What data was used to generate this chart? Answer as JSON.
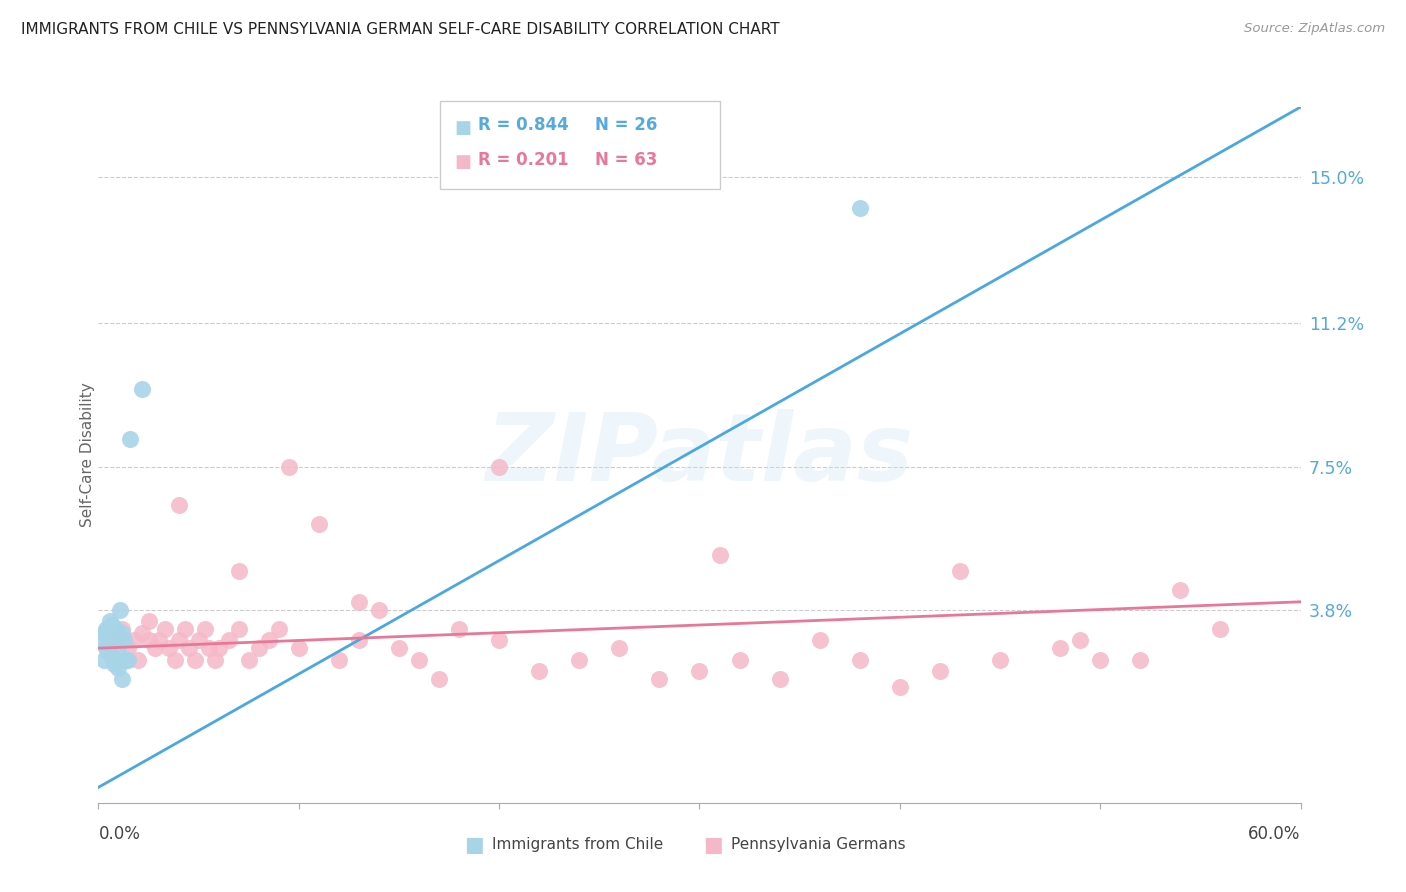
{
  "title": "IMMIGRANTS FROM CHILE VS PENNSYLVANIA GERMAN SELF-CARE DISABILITY CORRELATION CHART",
  "source": "Source: ZipAtlas.com",
  "ylabel": "Self-Care Disability",
  "ytick_labels": [
    "3.8%",
    "7.5%",
    "11.2%",
    "15.0%"
  ],
  "ytick_values": [
    0.038,
    0.075,
    0.112,
    0.15
  ],
  "xmin": 0.0,
  "xmax": 0.6,
  "ymin": -0.012,
  "ymax": 0.168,
  "legend_r1": "R = 0.844",
  "legend_n1": "N = 26",
  "legend_r2": "R = 0.201",
  "legend_n2": "N = 63",
  "color_blue": "#a8d4e8",
  "color_pink": "#f5b8c8",
  "color_blue_line": "#4aa8e0",
  "color_pink_line": "#e87898",
  "color_text_blue": "#55aadd",
  "color_text_pink": "#e87898",
  "watermark_text": "ZIPatlas",
  "blue_line_x0": 0.0,
  "blue_line_y0": -0.008,
  "blue_line_x1": 0.6,
  "blue_line_y1": 0.168,
  "pink_line_x0": 0.0,
  "pink_line_y0": 0.028,
  "pink_line_x1": 0.6,
  "pink_line_y1": 0.04,
  "blue_x": [
    0.002,
    0.003,
    0.003,
    0.004,
    0.004,
    0.005,
    0.005,
    0.006,
    0.006,
    0.007,
    0.007,
    0.008,
    0.008,
    0.009,
    0.009,
    0.01,
    0.01,
    0.011,
    0.012,
    0.012,
    0.013,
    0.014,
    0.016,
    0.022,
    0.38,
    0.015
  ],
  "blue_y": [
    0.03,
    0.025,
    0.032,
    0.028,
    0.033,
    0.027,
    0.031,
    0.035,
    0.029,
    0.026,
    0.034,
    0.024,
    0.031,
    0.03,
    0.033,
    0.028,
    0.023,
    0.038,
    0.032,
    0.02,
    0.03,
    0.025,
    0.082,
    0.095,
    0.142,
    0.025
  ],
  "pink_x": [
    0.01,
    0.012,
    0.015,
    0.018,
    0.02,
    0.022,
    0.025,
    0.028,
    0.03,
    0.033,
    0.035,
    0.038,
    0.04,
    0.043,
    0.045,
    0.048,
    0.05,
    0.053,
    0.055,
    0.058,
    0.06,
    0.065,
    0.07,
    0.075,
    0.08,
    0.085,
    0.09,
    0.1,
    0.11,
    0.12,
    0.13,
    0.14,
    0.15,
    0.16,
    0.17,
    0.18,
    0.2,
    0.22,
    0.24,
    0.26,
    0.28,
    0.3,
    0.32,
    0.34,
    0.36,
    0.38,
    0.4,
    0.42,
    0.45,
    0.48,
    0.5,
    0.52,
    0.54,
    0.56,
    0.07,
    0.13,
    0.2,
    0.31,
    0.43,
    0.49,
    0.025,
    0.04,
    0.095
  ],
  "pink_y": [
    0.03,
    0.033,
    0.028,
    0.03,
    0.025,
    0.032,
    0.035,
    0.028,
    0.03,
    0.033,
    0.028,
    0.025,
    0.03,
    0.033,
    0.028,
    0.025,
    0.03,
    0.033,
    0.028,
    0.025,
    0.028,
    0.03,
    0.033,
    0.025,
    0.028,
    0.03,
    0.033,
    0.028,
    0.06,
    0.025,
    0.03,
    0.038,
    0.028,
    0.025,
    0.02,
    0.033,
    0.03,
    0.022,
    0.025,
    0.028,
    0.02,
    0.022,
    0.025,
    0.02,
    0.03,
    0.025,
    0.018,
    0.022,
    0.025,
    0.028,
    0.025,
    0.025,
    0.043,
    0.033,
    0.048,
    0.04,
    0.075,
    0.052,
    0.048,
    0.03,
    0.03,
    0.065,
    0.075
  ]
}
